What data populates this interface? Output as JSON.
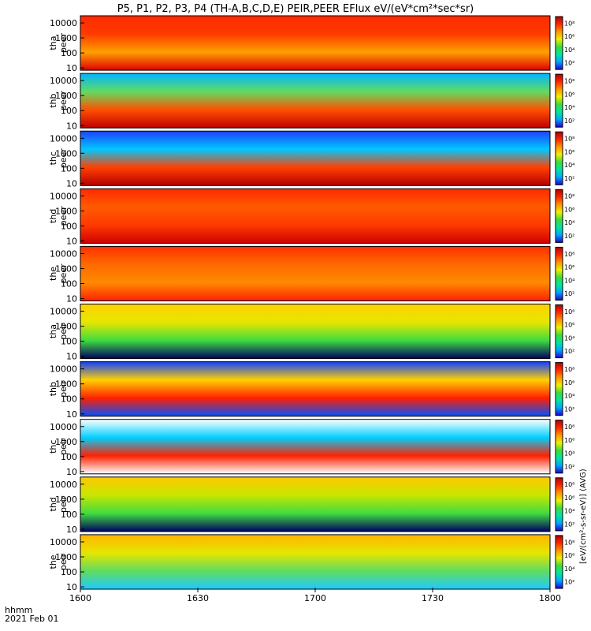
{
  "title": "P5, P1, P2, P3, P4 (TH-A,B,C,D,E) PEIR,PEER EFlux eV/(eV*cm²*sec*sr)",
  "colorbar_label": "[eV/(cm²-s-sr-eV)] (AVG)",
  "footer": {
    "time_label": "hhmm",
    "date_label": "2021 Feb 01"
  },
  "chart_data": {
    "type": "heatmap",
    "x_axis": {
      "range": [
        "1600",
        "1800"
      ],
      "ticks": [
        "1600",
        "1630",
        "1700",
        "1730",
        "1800"
      ],
      "units": "hhmm"
    },
    "y_scale": "log",
    "colorbar": {
      "scale": "log",
      "ticks": [
        "10²",
        "10⁴",
        "10⁶",
        "10⁸"
      ],
      "colors": [
        "#1e00d7",
        "#00a5ff",
        "#00e6a0",
        "#3cdc3c",
        "#f0f000",
        "#ff9600",
        "#ff2800",
        "#b40000"
      ]
    },
    "panels": [
      {
        "name": "tha peer",
        "label1": "tha",
        "label2": "peer",
        "y_ticks": [
          "10000",
          "1000",
          "100",
          "10"
        ],
        "ylim": [
          7,
          30000
        ]
      },
      {
        "name": "thb peer",
        "label1": "thb",
        "label2": "peer",
        "y_ticks": [
          "10000",
          "1000",
          "100",
          "10"
        ],
        "ylim": [
          7,
          30000
        ]
      },
      {
        "name": "thc peer",
        "label1": "thc",
        "label2": "peer",
        "y_ticks": [
          "10000",
          "1000",
          "100",
          "10"
        ],
        "ylim": [
          7,
          30000
        ]
      },
      {
        "name": "thd peer",
        "label1": "thd",
        "label2": "peer",
        "y_ticks": [
          "10000",
          "1000",
          "100",
          "10"
        ],
        "ylim": [
          7,
          30000
        ]
      },
      {
        "name": "the peer",
        "label1": "the",
        "label2": "peer",
        "y_ticks": [
          "10000",
          "1000",
          "100",
          "10"
        ],
        "ylim": [
          7,
          30000
        ]
      },
      {
        "name": "tha peir",
        "label1": "tha",
        "label2": "peir",
        "y_ticks": [
          "10000",
          "1000",
          "100",
          "10"
        ],
        "ylim": [
          7,
          30000
        ]
      },
      {
        "name": "thb peir",
        "label1": "thb",
        "label2": "peir",
        "y_ticks": [
          "10000",
          "1000",
          "100",
          "10"
        ],
        "ylim": [
          7,
          30000
        ]
      },
      {
        "name": "thc peir",
        "label1": "thc",
        "label2": "peir",
        "y_ticks": [
          "10000",
          "1000",
          "100",
          "10"
        ],
        "ylim": [
          7,
          30000
        ]
      },
      {
        "name": "thd peir",
        "label1": "thd",
        "label2": "peir",
        "y_ticks": [
          "10000",
          "1000",
          "100",
          "10"
        ],
        "ylim": [
          7,
          30000
        ]
      },
      {
        "name": "the peir",
        "label1": "the",
        "label2": "peir",
        "y_ticks": [
          "10000",
          "1000",
          "100",
          "10"
        ],
        "ylim": [
          7,
          30000
        ]
      }
    ]
  }
}
